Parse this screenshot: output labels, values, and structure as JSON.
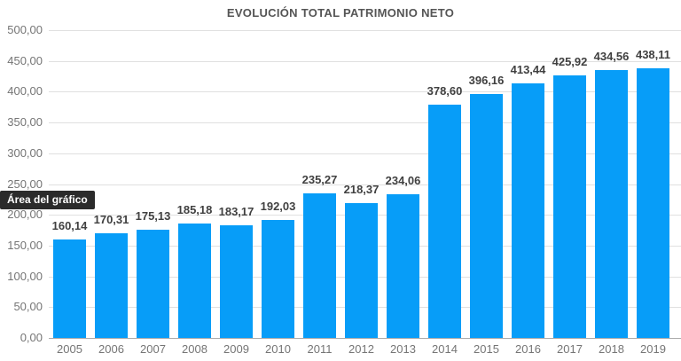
{
  "chart_data": {
    "type": "bar",
    "title": "EVOLUCIÓN TOTAL PATRIMONIO NETO",
    "categories": [
      "2005",
      "2006",
      "2007",
      "2008",
      "2009",
      "2010",
      "2011",
      "2012",
      "2013",
      "2014",
      "2015",
      "2016",
      "2017",
      "2018",
      "2019"
    ],
    "values": [
      160.14,
      170.31,
      175.13,
      185.18,
      183.17,
      192.03,
      235.27,
      218.37,
      234.06,
      378.6,
      396.16,
      413.44,
      425.92,
      434.56,
      438.11
    ],
    "value_labels": [
      "160,14",
      "170,31",
      "175,13",
      "185,18",
      "183,17",
      "192,03",
      "235,27",
      "218,37",
      "234,06",
      "378,60",
      "396,16",
      "413,44",
      "425,92",
      "434,56",
      "438,11"
    ],
    "xlabel": "",
    "ylabel": "",
    "ylim": [
      0,
      500
    ],
    "ytick_step": 50,
    "ytick_labels": [
      "0,00",
      "50,00",
      "100,00",
      "150,00",
      "200,00",
      "250,00",
      "300,00",
      "350,00",
      "400,00",
      "450,00",
      "500,00"
    ],
    "grid": true,
    "legend": "none",
    "colors": {
      "bar": "#079df8",
      "title": "#555555",
      "value_label": "#404040",
      "axis_label": "#757575",
      "gridline": "#e0e0e0",
      "baseline": "#ababab",
      "tooltip_bg": "#2b2b2b",
      "tooltip_fg": "#ffffff"
    }
  },
  "tooltip": {
    "text": "Área del gráfico"
  }
}
